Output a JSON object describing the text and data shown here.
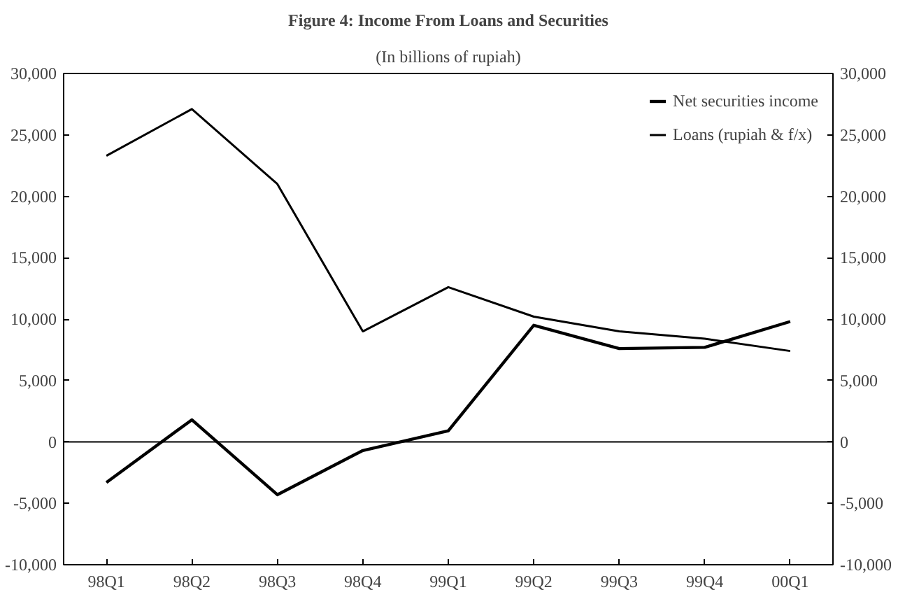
{
  "chart_data": {
    "type": "line",
    "title": "Figure 4: Income From Loans and Securities",
    "subtitle": "(In billions of rupiah)",
    "categories": [
      "98Q1",
      "98Q2",
      "98Q3",
      "98Q4",
      "99Q1",
      "99Q2",
      "99Q3",
      "99Q4",
      "00Q1"
    ],
    "series": [
      {
        "name": "Net securities income",
        "color": "#000000",
        "values": [
          -3300,
          1800,
          -4300,
          -700,
          900,
          9500,
          7600,
          7700,
          9800
        ]
      },
      {
        "name": "Loans (rupiah & f/x)",
        "color": "#000000",
        "values": [
          23300,
          27100,
          21000,
          9000,
          12600,
          10200,
          9000,
          8400,
          7400
        ]
      }
    ],
    "ylim": [
      -10000,
      30000
    ],
    "yticks": [
      {
        "value": -10000,
        "label": "-10,000"
      },
      {
        "value": -5000,
        "label": "-5,000"
      },
      0,
      {
        "value": 5000,
        "label": "5,000"
      },
      {
        "value": 10000,
        "label": "10,000"
      },
      {
        "value": 15000,
        "label": "15,000"
      },
      {
        "value": 20000,
        "label": "20,000"
      },
      {
        "value": 25000,
        "label": "25,000"
      },
      {
        "value": 30000,
        "label": "30,000"
      }
    ],
    "y2lim": [
      -10000,
      30000
    ],
    "y2ticks": [
      {
        "value": -10000,
        "label": "-10,000"
      },
      {
        "value": -5000,
        "label": "-5,000"
      },
      0,
      {
        "value": 5000,
        "label": "5,000"
      },
      {
        "value": 10000,
        "label": "10,000"
      },
      {
        "value": 15000,
        "label": "15,000"
      },
      {
        "value": 20000,
        "label": "20,000"
      },
      {
        "value": 25000,
        "label": "25,000"
      },
      {
        "value": 30000,
        "label": "30,000"
      }
    ],
    "ref_lines": [
      {
        "axis": "y",
        "value": 0
      }
    ],
    "legend": "top right",
    "grid": false,
    "line_style": "solid"
  }
}
